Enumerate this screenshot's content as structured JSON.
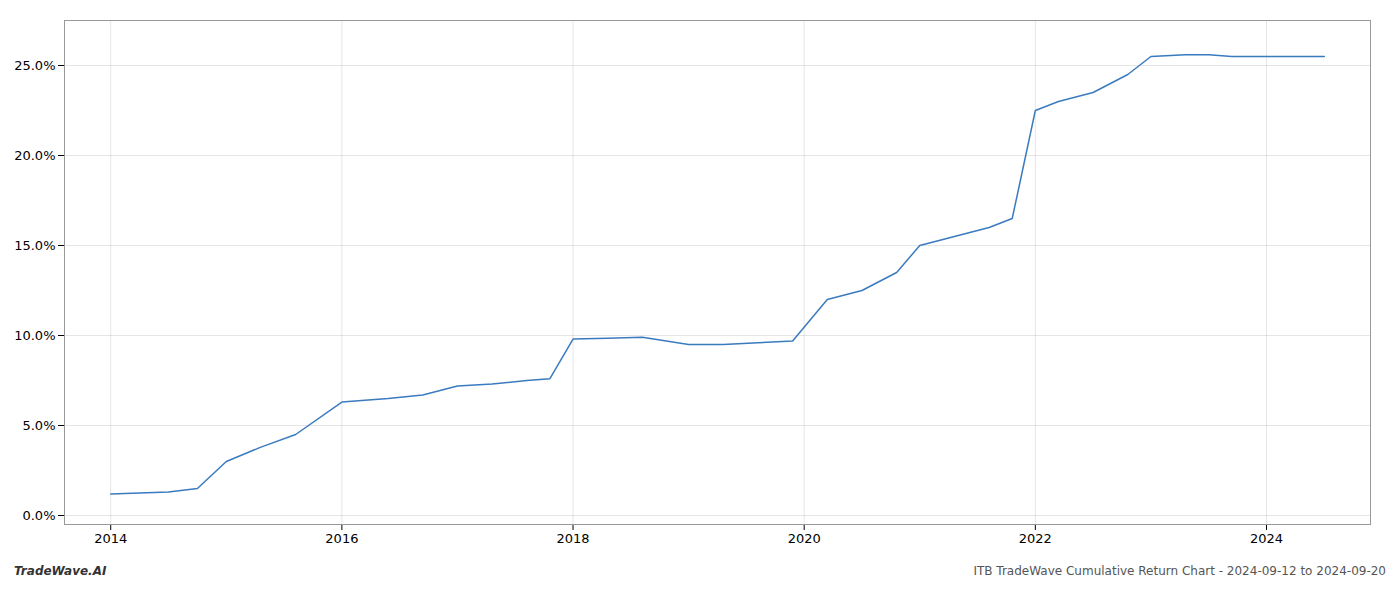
{
  "chart_data": {
    "type": "line",
    "x": [
      2014.0,
      2014.5,
      2014.75,
      2015.0,
      2015.3,
      2015.6,
      2016.0,
      2016.4,
      2016.7,
      2017.0,
      2017.3,
      2017.6,
      2017.8,
      2018.0,
      2018.3,
      2018.6,
      2019.0,
      2019.3,
      2019.6,
      2019.9,
      2020.2,
      2020.5,
      2020.8,
      2021.0,
      2021.3,
      2021.6,
      2021.8,
      2022.0,
      2022.2,
      2022.5,
      2022.8,
      2023.0,
      2023.3,
      2023.5,
      2023.7,
      2024.0,
      2024.5
    ],
    "values": [
      1.2,
      1.3,
      1.5,
      3.0,
      3.8,
      4.5,
      6.3,
      6.5,
      6.7,
      7.2,
      7.3,
      7.5,
      7.6,
      9.8,
      9.85,
      9.9,
      9.5,
      9.5,
      9.6,
      9.7,
      12.0,
      12.5,
      13.5,
      15.0,
      15.5,
      16.0,
      16.5,
      22.5,
      23.0,
      23.5,
      24.5,
      25.5,
      25.6,
      25.6,
      25.5,
      25.5,
      25.5
    ],
    "color": "#3a7bbf",
    "xlim": [
      2013.6,
      2024.9
    ],
    "xticks": [
      2014,
      2016,
      2018,
      2020,
      2022,
      2024
    ],
    "ylim": [
      -0.5,
      27.5
    ],
    "yticks": [
      {
        "value": 0.0,
        "label": "0.0%"
      },
      {
        "value": 5.0,
        "label": "5.0%"
      },
      {
        "value": 10.0,
        "label": "10.0%"
      },
      {
        "value": 15.0,
        "label": "15.0%"
      },
      {
        "value": 20.0,
        "label": "20.0%"
      },
      {
        "value": 25.0,
        "label": "25.0%"
      }
    ],
    "grid": true,
    "annotations": [
      "TradeWave.AI",
      "ITB TradeWave Cumulative Return Chart - 2024-09-12 to 2024-09-20"
    ]
  }
}
